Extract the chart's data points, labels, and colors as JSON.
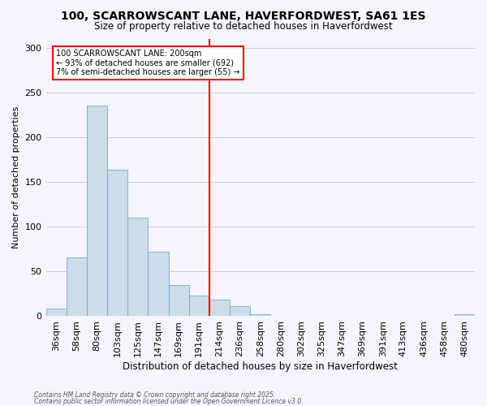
{
  "title": "100, SCARROWSCANT LANE, HAVERFORDWEST, SA61 1ES",
  "subtitle": "Size of property relative to detached houses in Haverfordwest",
  "xlabel": "Distribution of detached houses by size in Haverfordwest",
  "ylabel": "Number of detached properties",
  "bar_heights": [
    8,
    65,
    235,
    163,
    110,
    72,
    35,
    23,
    18,
    11,
    2,
    0,
    0,
    0,
    0,
    0,
    0,
    0,
    0,
    0,
    2
  ],
  "bin_labels": [
    "36sqm",
    "58sqm",
    "80sqm",
    "103sqm",
    "125sqm",
    "147sqm",
    "169sqm",
    "191sqm",
    "214sqm",
    "236sqm",
    "258sqm",
    "280sqm",
    "302sqm",
    "325sqm",
    "347sqm",
    "369sqm",
    "391sqm",
    "413sqm",
    "436sqm",
    "458sqm",
    "480sqm"
  ],
  "bar_color": "#ccdce8",
  "bar_edge_color": "#6aaad4",
  "vline_color": "red",
  "annotation_title": "100 SCARROWSCANT LANE: 200sqm",
  "annotation_line1": "← 93% of detached houses are smaller (692)",
  "annotation_line2": "7% of semi-detached houses are larger (55) →",
  "annotation_box_color": "white",
  "annotation_box_edge": "red",
  "ylim": [
    0,
    310
  ],
  "yticks": [
    0,
    50,
    100,
    150,
    200,
    250,
    300
  ],
  "footer1": "Contains HM Land Registry data © Crown copyright and database right 2025.",
  "footer2": "Contains public sector information licensed under the Open Government Licence v3.0.",
  "bg_color": "#f5f5ff",
  "grid_color": "#cccccc",
  "title_fontsize": 10,
  "subtitle_fontsize": 8.5
}
